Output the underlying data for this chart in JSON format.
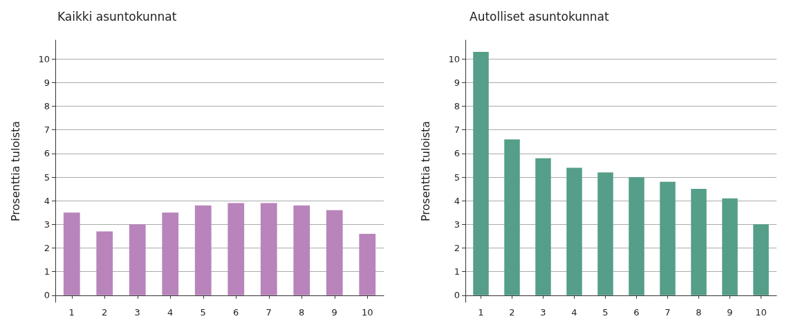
{
  "chart_data": [
    {
      "type": "bar",
      "title": "Kaikki asuntokunnat",
      "ylabel": "Prosenttia tuloista",
      "categories": [
        "1",
        "2",
        "3",
        "4",
        "5",
        "6",
        "7",
        "8",
        "9",
        "10"
      ],
      "values": [
        3.5,
        2.7,
        3.0,
        3.5,
        3.8,
        3.9,
        3.9,
        3.8,
        3.6,
        2.6
      ],
      "color": "#b884bb",
      "ylim": [
        -0.3,
        10.8
      ],
      "yticks": [
        0,
        1,
        2,
        3,
        4,
        5,
        6,
        7,
        8,
        9,
        10
      ],
      "grid": "y"
    },
    {
      "type": "bar",
      "title": "Autolliset asuntokunnat",
      "ylabel": "Prosenttia tuloista",
      "categories": [
        "1",
        "2",
        "3",
        "4",
        "5",
        "6",
        "7",
        "8",
        "9",
        "10"
      ],
      "values": [
        10.3,
        6.6,
        5.8,
        5.4,
        5.2,
        5.0,
        4.8,
        4.5,
        4.1,
        3.0
      ],
      "color": "#559e89",
      "ylim": [
        -0.3,
        10.8
      ],
      "yticks": [
        0,
        1,
        2,
        3,
        4,
        5,
        6,
        7,
        8,
        9,
        10
      ],
      "grid": "y"
    }
  ]
}
